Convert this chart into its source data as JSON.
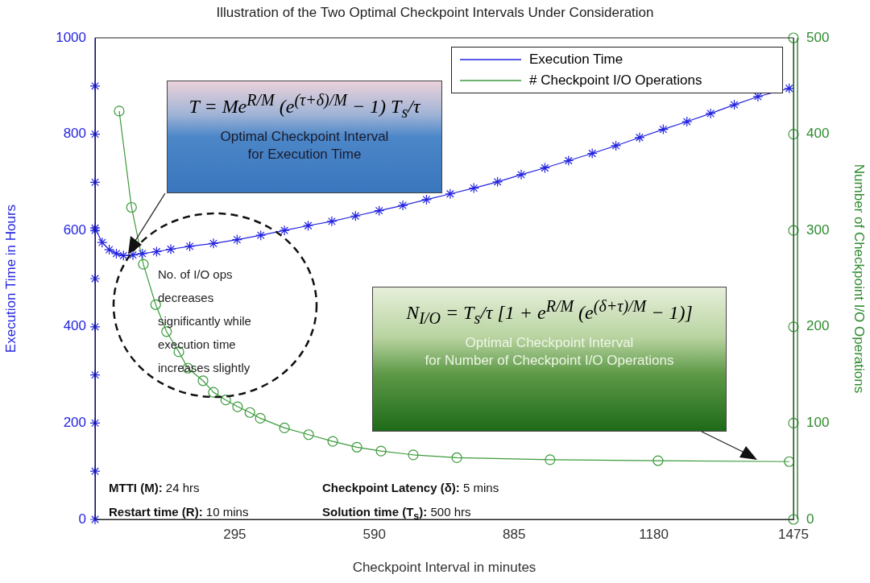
{
  "chart_data": {
    "type": "line",
    "title": "Illustration of the Two Optimal Checkpoint Intervals Under Consideration",
    "xlabel": "Checkpoint Interval in minutes",
    "ylabel": "Execution Time in Hours",
    "y2label": "Number of Checkpoint I/O Operations",
    "xlim": [
      0,
      1475
    ],
    "xticks": [
      295,
      590,
      885,
      1180,
      1475
    ],
    "ylim": [
      0,
      1000
    ],
    "yticks": [
      0,
      200,
      400,
      600,
      800,
      1000
    ],
    "y2lim": [
      0,
      500
    ],
    "y2ticks": [
      0,
      100,
      200,
      300,
      400,
      500
    ],
    "grid": false,
    "legend": "top right",
    "series": [
      {
        "name": "Execution Time",
        "color": "#2323e0",
        "marker": "cross",
        "x": [
          0,
          15,
          30,
          45,
          60,
          80,
          100,
          130,
          160,
          200,
          250,
          300,
          350,
          400,
          450,
          500,
          550,
          600,
          650,
          700,
          750,
          800,
          850,
          900,
          950,
          1000,
          1050,
          1100,
          1150,
          1200,
          1250,
          1300,
          1350,
          1400,
          1466
        ],
        "values": [
          605,
          575,
          560,
          552,
          548,
          549,
          552,
          556,
          561,
          567,
          573,
          581,
          590,
          600,
          610,
          619,
          630,
          641,
          652,
          664,
          676,
          688,
          701,
          716,
          730,
          745,
          760,
          776,
          793,
          810,
          826,
          843,
          861,
          878,
          895
        ]
      },
      {
        "name": "# Checkpoint I/O Operations",
        "color": "#3c9a3c",
        "marker": "circle",
        "axis": "y2",
        "x": [
          51,
          77,
          102,
          128,
          151,
          177,
          196,
          228,
          250,
          276,
          301,
          327,
          349,
          400,
          451,
          502,
          553,
          604,
          672,
          764,
          961,
          1189,
          1466
        ],
        "values": [
          424,
          324,
          265,
          223,
          195,
          174,
          157,
          144,
          132,
          124,
          117,
          111,
          105,
          95,
          88,
          81,
          75,
          71,
          67,
          64,
          62,
          61,
          60
        ]
      },
      {
        "type": "scatter",
        "color": "#2323e0",
        "marker": "cross",
        "x": [
          0,
          0,
          0,
          0,
          0,
          0,
          0,
          0,
          0,
          0
        ],
        "values": [
          0,
          100,
          200,
          300,
          400,
          500,
          600,
          700,
          800,
          900
        ]
      },
      {
        "type": "scatter",
        "color": "#3c9a3c",
        "marker": "circle",
        "axis": "y2",
        "x": [
          1475,
          1475,
          1475,
          1475,
          1475,
          1475
        ],
        "values": [
          0,
          100,
          200,
          300,
          400,
          500
        ]
      }
    ],
    "annotations": [
      "T = Me$^{R/M}$ (e$^{(τ+δ)/M}$ − 1) T$_{s}$/τ",
      "Optimal Checkpoint Interval\nfor Execution Time",
      "N$_{I/O}$ = T$_{s}$/τ [1 + e$^{R/M}$ (e$^{(δ+τ)/M}$ − 1)]",
      "Optimal Checkpoint  Interval\nfor Number of Checkpoint  I/O Operations",
      "No. of I/O ops\ndecreases\nsignificantly while\nexecution time\nincreases slightly",
      "MTTI (M): 24 hrs",
      "Restart time (R): 10 mins",
      "Checkpoint Latency (δ): 5 mins",
      "Solution time (T$_{s}$): 500 hrs"
    ]
  }
}
